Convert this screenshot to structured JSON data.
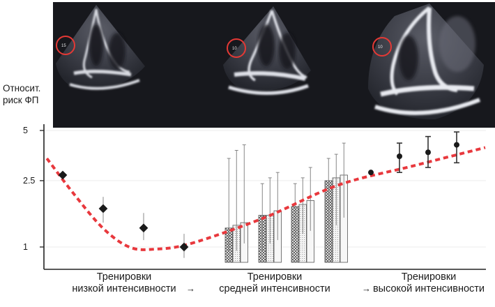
{
  "y_axis_label": [
    "Относит.",
    "риск ФП"
  ],
  "echo_panels": [
    {
      "scale_label": "15"
    },
    {
      "scale_label": "10"
    },
    {
      "scale_label": "10"
    }
  ],
  "arrow_glyph": "→",
  "colors": {
    "curve": "#e8383d",
    "echo_background": "#17181d",
    "highlight_circle": "#e53935",
    "marker": "#1a1a1a"
  },
  "chart_data": {
    "type": "scatter",
    "y_scale": "log",
    "ylim": [
      0.8,
      5.8
    ],
    "yticks": [
      1,
      2.5,
      5
    ],
    "ytick_labels": [
      "1",
      "2.5",
      "5"
    ],
    "x_categories": [
      {
        "lines": [
          "Тренировки",
          "низкой интенсивности"
        ]
      },
      {
        "lines": [
          "Тренировки",
          "средней интенсивности"
        ]
      },
      {
        "lines": [
          "Тренировки",
          "высокой интенсивности"
        ]
      }
    ],
    "low_intensity_points": [
      {
        "y": 2.7,
        "low": 2.6,
        "high": 2.8
      },
      {
        "y": 1.7,
        "low": 1.4,
        "high": 2.0
      },
      {
        "y": 1.3,
        "low": 1.1,
        "high": 1.6
      },
      {
        "y": 1.0,
        "low": 0.86,
        "high": 1.2
      }
    ],
    "moderate_intensity_bars": [
      {
        "values": [
          1.3,
          1.35,
          1.4
        ],
        "low": [
          0.95,
          0.95,
          1.05
        ],
        "high": [
          3.4,
          3.8,
          4.1
        ]
      },
      {
        "values": [
          1.55,
          1.55,
          1.65
        ],
        "low": [
          0.95,
          1.05,
          1.1
        ],
        "high": [
          2.4,
          2.6,
          2.8
        ]
      },
      {
        "values": [
          1.75,
          1.8,
          1.9
        ],
        "low": [
          1.15,
          1.2,
          1.25
        ],
        "high": [
          2.4,
          2.6,
          3.0
        ]
      },
      {
        "values": [
          2.5,
          2.6,
          2.7
        ],
        "low": [
          1.3,
          1.35,
          1.5
        ],
        "high": [
          3.4,
          3.6,
          4.2
        ]
      }
    ],
    "high_intensity_points": [
      {
        "y": 2.8,
        "low": 2.8,
        "high": 2.8
      },
      {
        "y": 3.5,
        "low": 2.8,
        "high": 4.2
      },
      {
        "y": 3.7,
        "low": 3.0,
        "high": 4.6
      },
      {
        "y": 4.1,
        "low": 3.2,
        "high": 4.9
      }
    ],
    "trend_curve": [
      {
        "x": 0.02,
        "y": 3.4
      },
      {
        "x": 0.2,
        "y": 2.1
      },
      {
        "x": 0.4,
        "y": 1.3
      },
      {
        "x": 0.58,
        "y": 1.0
      },
      {
        "x": 0.75,
        "y": 0.97
      },
      {
        "x": 1.0,
        "y": 1.05
      },
      {
        "x": 1.5,
        "y": 1.5
      },
      {
        "x": 2.0,
        "y": 2.35
      },
      {
        "x": 2.5,
        "y": 3.05
      },
      {
        "x": 3.0,
        "y": 3.95
      }
    ]
  }
}
